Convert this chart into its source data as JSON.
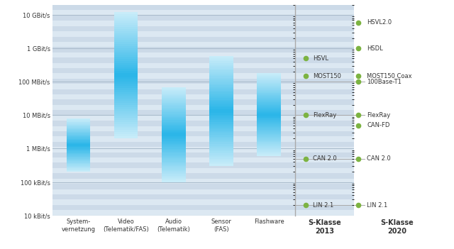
{
  "background_color": "#ffffff",
  "plot_bg_color": "#dce6f0",
  "stripe_color": "#c8d8e8",
  "bar_categories": [
    "System-\nvernetzung",
    "Video\n(Telematik/FAS)",
    "Audio\n(Telematik)",
    "Sensor\n(FAS)",
    "Flashware"
  ],
  "bar_bottoms_log": [
    200000,
    2000000,
    100000,
    300000,
    600000
  ],
  "bar_tops_log": [
    8000000,
    12000000000,
    70000000,
    600000000,
    180000000
  ],
  "bar_color": "#29b5e8",
  "bar_fade_color": "#a8daf0",
  "ymin": 10000,
  "ymax": 20000000000,
  "yticks": [
    10000,
    100000,
    1000000,
    10000000,
    100000000,
    1000000000,
    10000000000
  ],
  "ytick_labels": [
    "10 kBit/s",
    "100 kBit/s",
    "1 MBit/s",
    "10 MBit/s",
    "100 MBit/s",
    "1 GBit/s",
    "10 GBit/s"
  ],
  "s2013_labels": [
    "HSVL",
    "MOST150",
    "FlexRay",
    "CAN 2.0",
    "LIN 2.1"
  ],
  "s2013_values": [
    500000000,
    150000000,
    10000000,
    500000,
    20000
  ],
  "s2020_labels": [
    "HSVL2.0",
    "HSDL",
    "MOST150 Coax",
    "100Base-T1",
    "FlexRay",
    "CAN-FD",
    "CAN 2.0",
    "LIN 2.1"
  ],
  "s2020_values": [
    6000000000,
    1000000000,
    150000000,
    100000000,
    10000000,
    5000000,
    500000,
    20000
  ],
  "dot_color": "#7cb342",
  "line_color": "#aaaaaa",
  "separator_color": "#aaaaaa",
  "hline_values": [
    10000000,
    500000,
    20000,
    100000000
  ],
  "xlabel_2013": "S-Klasse\n2013",
  "xlabel_2020": "S-Klasse\n2020"
}
